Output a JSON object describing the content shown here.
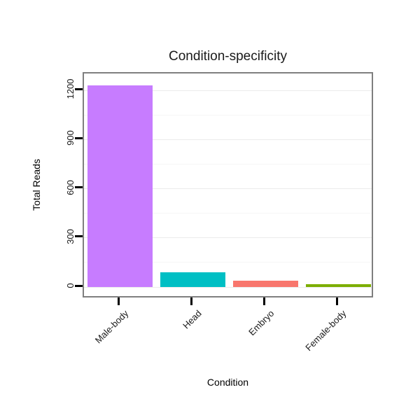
{
  "chart_data": {
    "type": "bar",
    "title": "Condition-specificity",
    "xlabel": "Condition",
    "ylabel": "Total Reads",
    "categories": [
      "Male-body",
      "Head",
      "Embryo",
      "Female-body"
    ],
    "values": [
      1230,
      90,
      40,
      15
    ],
    "bar_colors": [
      "#C77CFF",
      "#00BFC4",
      "#F8766D",
      "#7CAE00"
    ],
    "yticks": [
      0,
      300,
      600,
      900,
      1200
    ],
    "ylim": [
      0,
      1290
    ],
    "grid": "faint horizontal major and minor gridlines",
    "legend": "none",
    "panel_border_color": "#7f7f7f",
    "tick_color": "#000000",
    "background": "#ffffff"
  }
}
